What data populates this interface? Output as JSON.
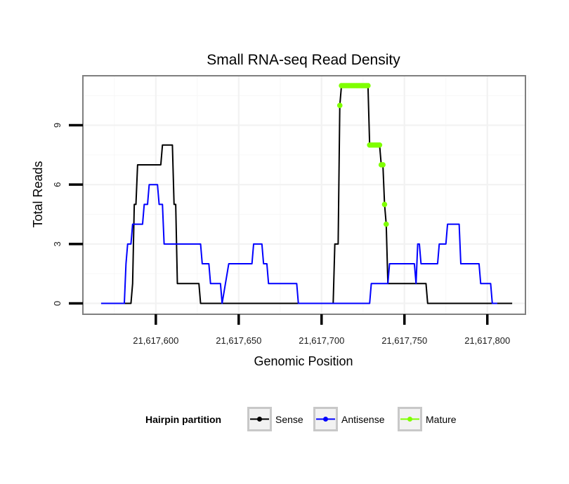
{
  "chart_data": {
    "type": "line",
    "title": "Small RNA-seq Read Density",
    "xlabel": "Genomic Position",
    "ylabel": "Total Reads",
    "xlim": [
      21617556,
      21617823
    ],
    "ylim": [
      -0.55,
      11.5
    ],
    "x_ticks": [
      21617600,
      21617650,
      21617700,
      21617750,
      21617800
    ],
    "x_tick_labels": [
      "21,617,600",
      "21,617,650",
      "21,617,700",
      "21,617,750",
      "21,617,800"
    ],
    "y_ticks": [
      0,
      3,
      6,
      9
    ],
    "y_tick_labels": [
      "0",
      "3",
      "6",
      "9"
    ],
    "grid": true,
    "legend": {
      "title": "Hairpin partition",
      "position": "bottom",
      "entries": [
        "Sense",
        "Antisense",
        "Mature"
      ]
    },
    "series": [
      {
        "name": "Sense",
        "color": "#000000",
        "points": [
          [
            21617567,
            0
          ],
          [
            21617585,
            0
          ],
          [
            21617586,
            1
          ],
          [
            21617587,
            5
          ],
          [
            21617588,
            5
          ],
          [
            21617589,
            7
          ],
          [
            21617603,
            7
          ],
          [
            21617604,
            8
          ],
          [
            21617610,
            8
          ],
          [
            21617611,
            5
          ],
          [
            21617612,
            5
          ],
          [
            21617613,
            1
          ],
          [
            21617626,
            1
          ],
          [
            21617627,
            0
          ],
          [
            21617707,
            0
          ],
          [
            21617708,
            3
          ],
          [
            21617710,
            3
          ],
          [
            21617711,
            10
          ],
          [
            21617712,
            11
          ],
          [
            21617728,
            11
          ],
          [
            21617729,
            8
          ],
          [
            21617735,
            8
          ],
          [
            21617736,
            7
          ],
          [
            21617737,
            7
          ],
          [
            21617738,
            5
          ],
          [
            21617739,
            4
          ],
          [
            21617740,
            1
          ],
          [
            21617763,
            1
          ],
          [
            21617764,
            0
          ],
          [
            21617815,
            0
          ]
        ]
      },
      {
        "name": "Antisense",
        "color": "#0000ff",
        "points": [
          [
            21617567,
            0
          ],
          [
            21617581,
            0
          ],
          [
            21617582,
            2
          ],
          [
            21617583,
            3
          ],
          [
            21617585,
            3
          ],
          [
            21617586,
            4
          ],
          [
            21617592,
            4
          ],
          [
            21617593,
            5
          ],
          [
            21617595,
            5
          ],
          [
            21617596,
            6
          ],
          [
            21617601,
            6
          ],
          [
            21617602,
            5
          ],
          [
            21617604,
            5
          ],
          [
            21617605,
            3
          ],
          [
            21617627,
            3
          ],
          [
            21617628,
            2
          ],
          [
            21617632,
            2
          ],
          [
            21617633,
            1
          ],
          [
            21617639,
            1
          ],
          [
            21617640,
            0
          ],
          [
            21617642,
            1
          ],
          [
            21617644,
            2
          ],
          [
            21617658,
            2
          ],
          [
            21617659,
            3
          ],
          [
            21617664,
            3
          ],
          [
            21617665,
            2
          ],
          [
            21617667,
            2
          ],
          [
            21617668,
            1
          ],
          [
            21617685,
            1
          ],
          [
            21617686,
            0
          ],
          [
            21617729,
            0
          ],
          [
            21617730,
            1
          ],
          [
            21617740,
            1
          ],
          [
            21617741,
            2
          ],
          [
            21617756,
            2
          ],
          [
            21617757,
            1
          ],
          [
            21617758,
            3
          ],
          [
            21617759,
            3
          ],
          [
            21617760,
            2
          ],
          [
            21617770,
            2
          ],
          [
            21617771,
            3
          ],
          [
            21617775,
            3
          ],
          [
            21617776,
            4
          ],
          [
            21617783,
            4
          ],
          [
            21617784,
            2
          ],
          [
            21617795,
            2
          ],
          [
            21617796,
            1
          ],
          [
            21617802,
            1
          ],
          [
            21617803,
            0
          ],
          [
            21617806,
            0
          ]
        ]
      },
      {
        "name": "Mature",
        "color": "#7fff00",
        "points": [
          [
            21617711,
            10
          ],
          [
            21617712,
            11
          ],
          [
            21617713,
            11
          ],
          [
            21617714,
            11
          ],
          [
            21617715,
            11
          ],
          [
            21617716,
            11
          ],
          [
            21617717,
            11
          ],
          [
            21617718,
            11
          ],
          [
            21617719,
            11
          ],
          [
            21617720,
            11
          ],
          [
            21617721,
            11
          ],
          [
            21617722,
            11
          ],
          [
            21617723,
            11
          ],
          [
            21617724,
            11
          ],
          [
            21617725,
            11
          ],
          [
            21617726,
            11
          ],
          [
            21617727,
            11
          ],
          [
            21617728,
            11
          ],
          [
            21617729,
            8
          ],
          [
            21617730,
            8
          ],
          [
            21617731,
            8
          ],
          [
            21617732,
            8
          ],
          [
            21617733,
            8
          ],
          [
            21617734,
            8
          ],
          [
            21617735,
            8
          ],
          [
            21617736,
            7
          ],
          [
            21617737,
            7
          ],
          [
            21617738,
            5
          ],
          [
            21617739,
            4
          ]
        ]
      }
    ]
  }
}
